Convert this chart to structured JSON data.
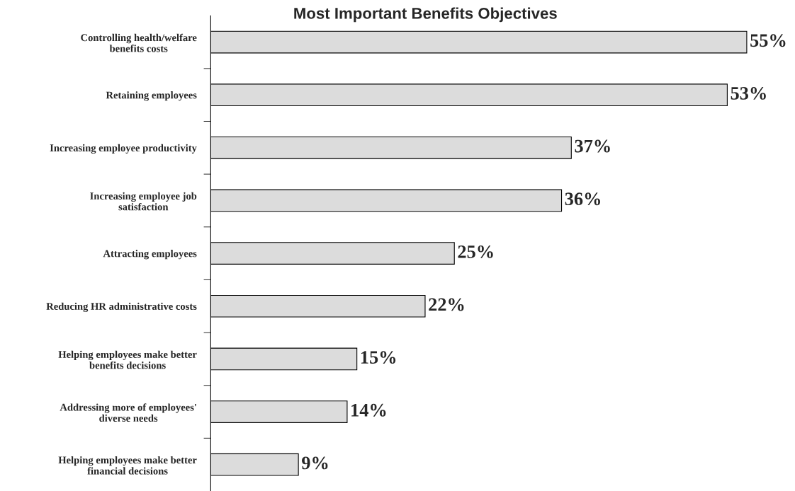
{
  "chart_data": {
    "type": "bar",
    "orientation": "horizontal",
    "title": "Most Important Benefits Objectives",
    "categories": [
      "Controlling health/welfare\nbenefits costs",
      "Retaining employees",
      "Increasing employee productivity",
      "Increasing employee job\nsatisfaction",
      "Attracting employees",
      "Reducing HR administrative costs",
      "Helping employees make better\nbenefits decisions",
      "Addressing more of employees'\ndiverse needs",
      "Helping employees make better\nfinancial decisions"
    ],
    "values": [
      55,
      53,
      37,
      36,
      25,
      22,
      15,
      14,
      9
    ],
    "value_labels": [
      "55%",
      "53%",
      "37%",
      "36%",
      "25%",
      "22%",
      "15%",
      "14%",
      "9%"
    ],
    "color": "#dcdcdc",
    "tick_labels": "y",
    "grid": false,
    "legend": false
  }
}
